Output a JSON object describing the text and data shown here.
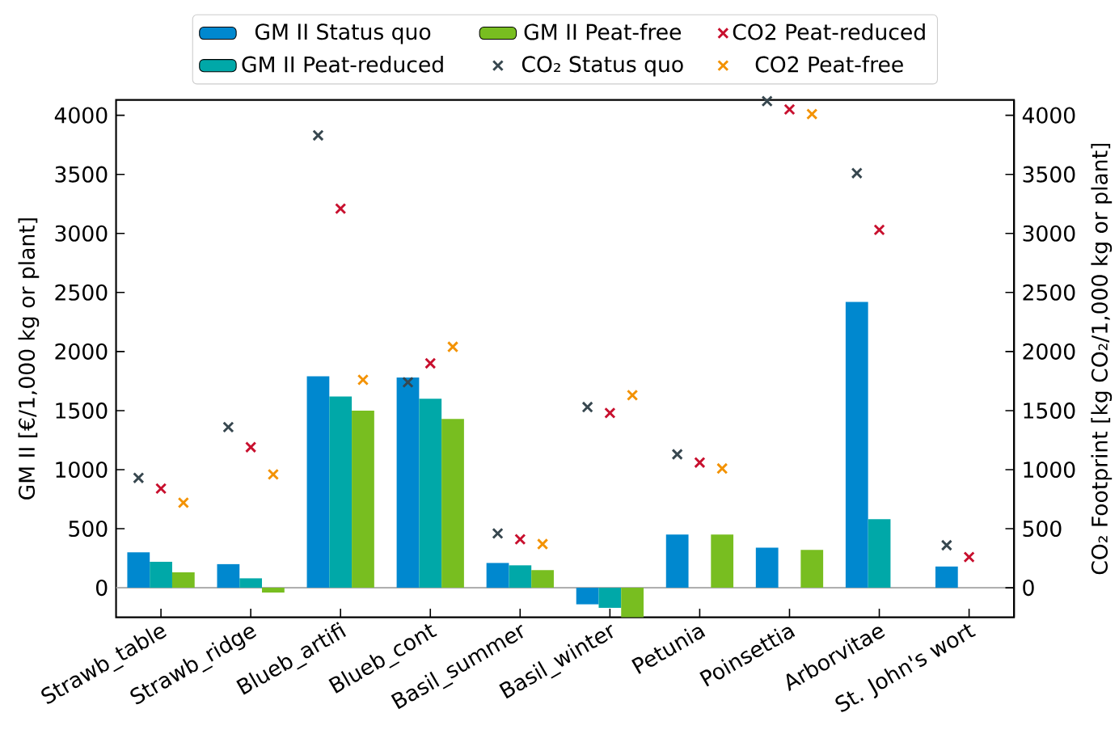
{
  "chart_data": {
    "type": "bar",
    "categories": [
      "Strawb_table",
      "Strawb_ridge",
      "Blueb_artifi",
      "Blueb_cont",
      "Basil_summer",
      "Basil_winter",
      "Petunia",
      "Poinsettia",
      "Arborvitae",
      "St. John's wort"
    ],
    "ylabel": "GM II [€/1,000 kg or plant]",
    "y2label": "CO₂ Footprint [kg CO₂/1,000 kg or plant]",
    "ylim": [
      -250,
      4130
    ],
    "yticks": [
      0,
      500,
      1000,
      1500,
      2000,
      2500,
      3000,
      3500,
      4000
    ],
    "y2lim": [
      -250,
      4130
    ],
    "y2ticks": [
      0,
      500,
      1000,
      1500,
      2000,
      2500,
      3000,
      3500,
      4000
    ],
    "legend": "top",
    "marker": "cross",
    "ref_lines": [
      {
        "axis": "y",
        "value": 0,
        "color": "#b0b0b0"
      }
    ],
    "series": [
      {
        "name": "GM II Status quo",
        "color": "#0088cf",
        "values": [
          300,
          200,
          1790,
          1780,
          210,
          -140,
          450,
          340,
          2420,
          180
        ]
      },
      {
        "name": "GM II Peat-reduced",
        "color": "#00a8a8",
        "values": [
          220,
          80,
          1620,
          1600,
          190,
          -170,
          null,
          null,
          580,
          null
        ]
      },
      {
        "name": "GM II Peat-free",
        "color": "#78be20",
        "values": [
          130,
          -40,
          1500,
          1430,
          150,
          -250,
          450,
          320,
          null,
          null
        ]
      },
      {
        "name": "CO₂ Status quo",
        "type": "scatter",
        "axis": "y2",
        "color": "#37474f",
        "values": [
          930,
          1360,
          3830,
          1740,
          460,
          1530,
          1130,
          4120,
          3510,
          360
        ]
      },
      {
        "name": "CO2 Peat-reduced",
        "type": "scatter",
        "axis": "y2",
        "color": "#c8102e",
        "values": [
          840,
          1190,
          3210,
          1900,
          410,
          1480,
          1060,
          4050,
          3030,
          260
        ]
      },
      {
        "name": "CO2 Peat-free",
        "type": "scatter",
        "axis": "y2",
        "color": "#f39200",
        "values": [
          720,
          960,
          1760,
          2040,
          370,
          1630,
          1010,
          4010,
          null,
          null
        ]
      }
    ]
  }
}
